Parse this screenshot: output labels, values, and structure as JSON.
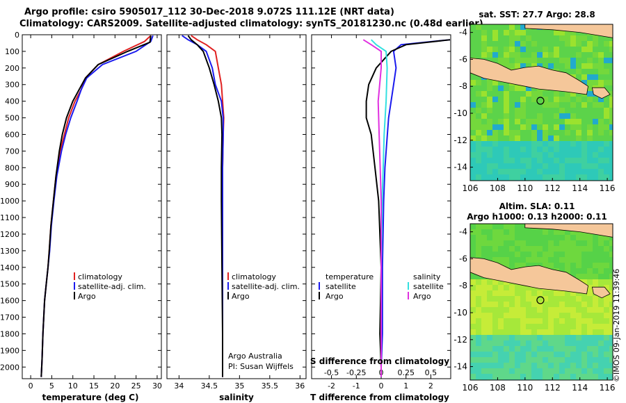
{
  "header": {
    "line1": "Argo profile: csiro 5905017_112 30-Dec-2018 9.072S 111.12E (NRT data)",
    "line2": "Climatology: CARS2009. Satellite-adjusted climatology: synTS_20181230.nc (0.48d earlier)"
  },
  "colors": {
    "climatology": "#e02020",
    "satellite": "#1a1aee",
    "argo": "#000000",
    "s_satellite": "#33e0e0",
    "s_argo": "#e030e0",
    "land": "#f5c79a"
  },
  "chart_data": [
    {
      "type": "line",
      "name": "temperature",
      "xlabel": "temperature (deg C)",
      "ylabel": "depth",
      "xlim": [
        -2,
        31
      ],
      "ylim": [
        2070,
        0
      ],
      "xticks": [
        0,
        5,
        10,
        15,
        20,
        25,
        30
      ],
      "yticks": [
        0,
        100,
        200,
        300,
        400,
        500,
        600,
        700,
        800,
        900,
        1000,
        1100,
        1200,
        1300,
        1400,
        1500,
        1600,
        1700,
        1800,
        1900,
        2000
      ],
      "legend": [
        "climatology",
        "satellite-adj. clim.",
        "Argo"
      ],
      "series": [
        {
          "name": "climatology",
          "x": [
            28.5,
            27,
            22,
            16,
            13,
            12,
            10.5,
            9,
            8,
            7,
            6,
            5.4,
            4.8,
            4.4,
            4.1,
            3.7,
            3.3,
            3.1,
            2.9,
            2.7,
            2.5
          ],
          "y": [
            5,
            40,
            100,
            180,
            260,
            330,
            400,
            500,
            600,
            700,
            850,
            1000,
            1150,
            1300,
            1400,
            1500,
            1600,
            1700,
            1800,
            1950,
            2060
          ]
        },
        {
          "name": "satellite-adj. clim.",
          "x": [
            29,
            28.5,
            25,
            17,
            13.3,
            12,
            11,
            9.5,
            8.3,
            7.3,
            6.2,
            5.5,
            4.9,
            4.5,
            4.1,
            3.7,
            3.3,
            3.1,
            2.9,
            2.7,
            2.5
          ],
          "y": [
            5,
            40,
            100,
            180,
            260,
            330,
            400,
            500,
            600,
            700,
            850,
            1000,
            1150,
            1300,
            1400,
            1500,
            1600,
            1700,
            1800,
            1950,
            2060
          ]
        },
        {
          "name": "Argo",
          "x": [
            28.5,
            28.3,
            23,
            16,
            13,
            11.5,
            10,
            8.5,
            7.5,
            6.8,
            6,
            5.4,
            4.8,
            4.4,
            4.1,
            3.7,
            3.3,
            3.1,
            2.9,
            2.7,
            2.5
          ],
          "y": [
            5,
            45,
            100,
            180,
            260,
            330,
            400,
            500,
            600,
            700,
            850,
            1000,
            1150,
            1300,
            1400,
            1500,
            1600,
            1700,
            1800,
            1950,
            2060
          ]
        }
      ]
    },
    {
      "type": "line",
      "name": "salinity",
      "xlabel": "salinity",
      "xlim": [
        33.8,
        36.1
      ],
      "xticks": [
        34,
        34.5,
        35,
        35.5,
        36
      ],
      "xtick_labels": [
        "34",
        "34.5",
        "35",
        "35.5",
        "36"
      ],
      "legend": [
        "climatology",
        "satellite-adj. clim.",
        "Argo"
      ],
      "annotations": [
        "Argo Australia",
        "PI: Susan Wijffels"
      ],
      "series": [
        {
          "name": "climatology",
          "x": [
            34.2,
            34.3,
            34.45,
            34.6,
            34.65,
            34.7,
            34.72,
            34.74,
            34.73,
            34.72,
            34.72,
            34.72,
            34.72,
            34.72
          ],
          "y": [
            5,
            30,
            60,
            100,
            200,
            300,
            400,
            500,
            600,
            800,
            1000,
            1400,
            1800,
            2060
          ]
        },
        {
          "name": "satellite-adj. clim.",
          "x": [
            34.05,
            34.15,
            34.3,
            34.45,
            34.55,
            34.6,
            34.7,
            34.73,
            34.73,
            34.72,
            34.72,
            34.72,
            34.72,
            34.72
          ],
          "y": [
            5,
            30,
            60,
            100,
            200,
            300,
            400,
            500,
            600,
            800,
            1000,
            1400,
            1800,
            2060
          ]
        },
        {
          "name": "Argo",
          "x": [
            34.15,
            34.2,
            34.3,
            34.4,
            34.5,
            34.58,
            34.65,
            34.7,
            34.71,
            34.7,
            34.7,
            34.71,
            34.72,
            34.72
          ],
          "y": [
            5,
            30,
            60,
            100,
            200,
            300,
            400,
            500,
            600,
            800,
            1000,
            1400,
            1800,
            2060
          ]
        }
      ]
    },
    {
      "type": "line",
      "name": "difference",
      "xlabel": "T difference from climatology",
      "xlabel_top": "S difference from climatology",
      "xlim": [
        -2.8,
        2.8
      ],
      "xticks": [
        -2,
        -1,
        0,
        1,
        2
      ],
      "xtick_labels": [
        "-2",
        "-1",
        "0",
        "1",
        "2"
      ],
      "s_ticks": [
        -0.5,
        -0.25,
        0,
        0.25,
        0.5
      ],
      "s_tick_labels": [
        "-0.5",
        "-0.25",
        "0",
        "0.25",
        "0.5"
      ],
      "legend_t_title": "temperature",
      "legend_s_title": "salinity",
      "legend_t": [
        "satellite",
        "Argo"
      ],
      "legend_s": [
        "satellite",
        "Argo"
      ],
      "series": [
        {
          "name": "T satellite",
          "var": "T",
          "x": [
            2.8,
            0.8,
            0.5,
            0.6,
            0.5,
            0.4,
            0.3,
            0.25,
            0.15,
            0.1,
            0.05,
            0.05,
            0.0,
            0.0
          ],
          "y": [
            30,
            60,
            100,
            200,
            300,
            400,
            500,
            600,
            800,
            1000,
            1400,
            1800,
            2000,
            2060
          ]
        },
        {
          "name": "T Argo",
          "var": "T",
          "x": [
            2.8,
            1.0,
            0.4,
            -0.2,
            -0.5,
            -0.6,
            -0.6,
            -0.4,
            -0.25,
            -0.1,
            0.0,
            -0.05,
            0.0,
            0.0
          ],
          "y": [
            30,
            60,
            100,
            200,
            300,
            400,
            500,
            600,
            800,
            1000,
            1400,
            1800,
            2000,
            2060
          ]
        },
        {
          "name": "S satellite",
          "var": "S",
          "x": [
            -0.1,
            -0.05,
            0.05,
            0.06,
            0.05,
            0.03,
            0.02,
            0.01,
            0.0,
            0.0,
            0.0
          ],
          "y": [
            30,
            60,
            100,
            200,
            400,
            600,
            800,
            1000,
            1400,
            1800,
            2060
          ]
        },
        {
          "name": "S Argo",
          "var": "S",
          "x": [
            -0.18,
            -0.1,
            0.0,
            0.0,
            -0.03,
            -0.02,
            -0.01,
            0.0,
            0.0,
            0.0,
            0.0
          ],
          "y": [
            30,
            60,
            100,
            200,
            400,
            600,
            800,
            1000,
            1400,
            1800,
            2060
          ]
        }
      ]
    },
    {
      "type": "heatmap",
      "name": "sst-map",
      "title": "sat. SST: 27.7 Argo: 28.8",
      "xlim": [
        106,
        116.4
      ],
      "ylim": [
        -15,
        -3.4
      ],
      "xticks": [
        106,
        108,
        110,
        112,
        114,
        116
      ],
      "yticks": [
        -4,
        -6,
        -8,
        -10,
        -12,
        -14
      ],
      "argo_position": [
        111.12,
        -9.072
      ]
    },
    {
      "type": "heatmap",
      "name": "sla-map",
      "title_line1": "Altim. SLA: 0.11",
      "title_line2": "Argo h1000: 0.13 h2000: 0.11",
      "xlim": [
        106,
        116.4
      ],
      "ylim": [
        -15,
        -3.4
      ],
      "xticks": [
        106,
        108,
        110,
        112,
        114,
        116
      ],
      "yticks": [
        -4,
        -6,
        -8,
        -10,
        -12,
        -14
      ],
      "argo_position": [
        111.12,
        -9.072
      ]
    }
  ],
  "footer": {
    "stamp": "©IMOS 09-Jan-2019 11:39:46"
  }
}
